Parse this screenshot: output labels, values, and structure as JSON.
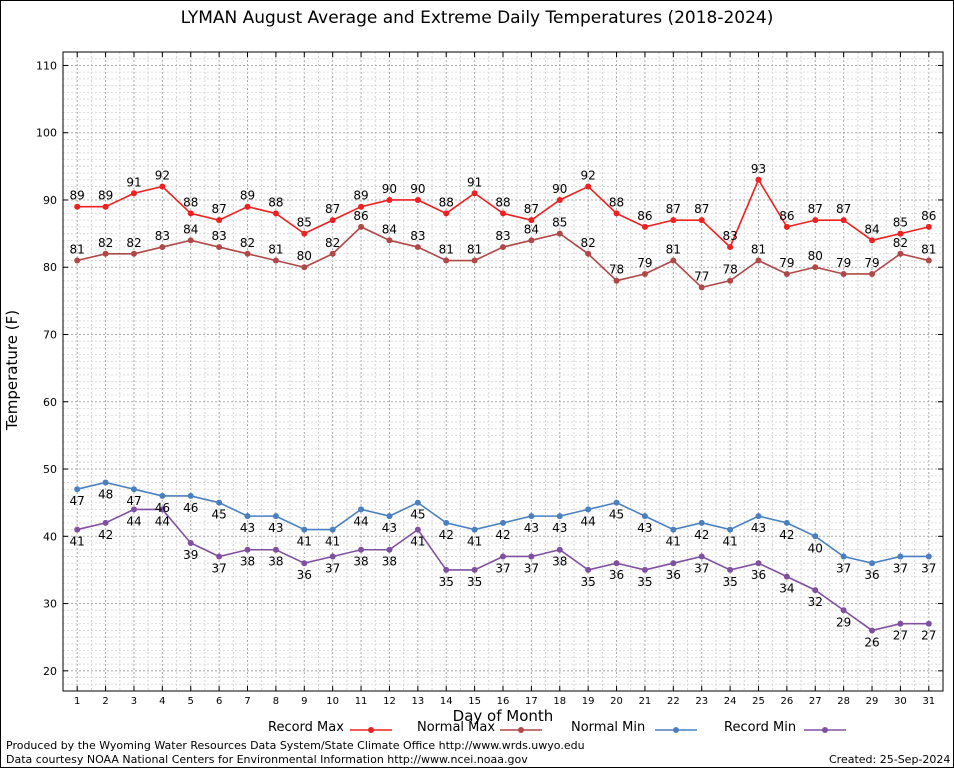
{
  "chart_data": {
    "type": "line",
    "title": "LYMAN August Average and Extreme Daily Temperatures (2018-2024)",
    "xlabel": "Day of Month",
    "ylabel": "Temperature (F)",
    "x": [
      1,
      2,
      3,
      4,
      5,
      6,
      7,
      8,
      9,
      10,
      11,
      12,
      13,
      14,
      15,
      16,
      17,
      18,
      19,
      20,
      21,
      22,
      23,
      24,
      25,
      26,
      27,
      28,
      29,
      30,
      31
    ],
    "xlim": [
      0.5,
      31.5
    ],
    "ylim": [
      17,
      112
    ],
    "yticks": [
      20,
      30,
      40,
      50,
      60,
      70,
      80,
      90,
      100,
      110
    ],
    "grid": true,
    "legend_position": "bottom",
    "series": [
      {
        "name": "Record Max",
        "color": "#ee2020",
        "label_pos": "above",
        "values": [
          89,
          89,
          91,
          92,
          88,
          87,
          89,
          88,
          85,
          87,
          89,
          90,
          90,
          88,
          91,
          88,
          87,
          90,
          92,
          88,
          86,
          87,
          87,
          83,
          93,
          86,
          87,
          87,
          84,
          85,
          86
        ]
      },
      {
        "name": "Normal Max",
        "color": "#b04848",
        "label_pos": "above",
        "values": [
          81,
          82,
          82,
          83,
          84,
          83,
          82,
          81,
          80,
          82,
          86,
          84,
          83,
          81,
          81,
          83,
          84,
          85,
          82,
          78,
          79,
          81,
          77,
          78,
          81,
          79,
          80,
          79,
          79,
          82,
          81
        ]
      },
      {
        "name": "Normal Min",
        "color": "#4a80c0",
        "label_pos": "below",
        "values": [
          47,
          48,
          47,
          46,
          46,
          45,
          43,
          43,
          41,
          41,
          44,
          43,
          45,
          42,
          41,
          42,
          43,
          43,
          44,
          45,
          43,
          41,
          42,
          41,
          43,
          42,
          40,
          37,
          36,
          37,
          37
        ]
      },
      {
        "name": "Record Min",
        "color": "#8050a0",
        "label_pos": "below",
        "values": [
          41,
          42,
          44,
          44,
          39,
          37,
          38,
          38,
          36,
          37,
          38,
          38,
          41,
          35,
          35,
          37,
          37,
          38,
          35,
          36,
          35,
          36,
          37,
          35,
          36,
          34,
          32,
          29,
          26,
          27,
          27
        ]
      }
    ]
  },
  "footer": {
    "produced_by": "Produced by the Wyoming Water Resources Data System/State Climate Office http://www.wrds.uwyo.edu",
    "courtesy": "Data courtesy NOAA National Centers for Environmental Information http://www.ncei.noaa.gov",
    "created": "Created: 25-Sep-2024"
  }
}
